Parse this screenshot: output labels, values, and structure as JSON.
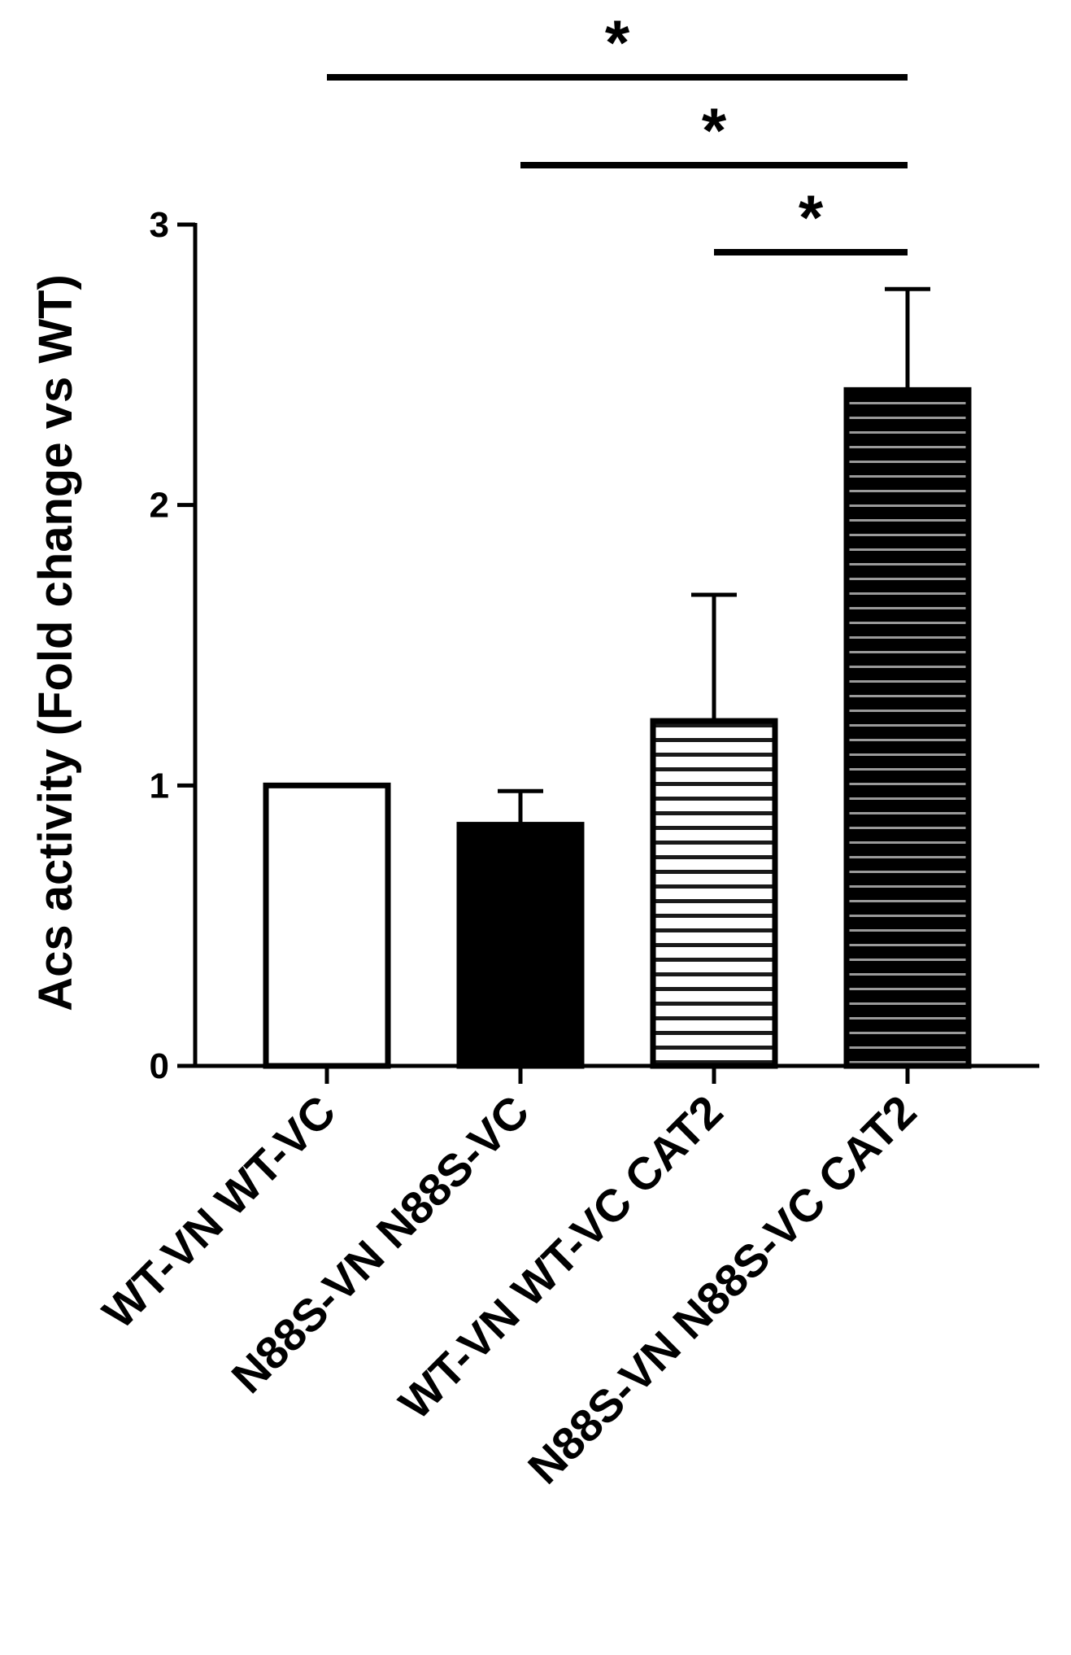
{
  "chart_data": {
    "type": "bar",
    "ylabel": "Acs  activity (Fold change vs WT)",
    "xlabel": "",
    "ylim": [
      0,
      3
    ],
    "yticks": [
      "0",
      "1",
      "2",
      "3"
    ],
    "categories": [
      "WT-VN WT-VC",
      "N88S-VN N88S-VC",
      "WT-VN WT-VC CAT2",
      "N88S-VN N88S-VC CAT2"
    ],
    "values": [
      1.0,
      0.86,
      1.23,
      2.41
    ],
    "errors": [
      0,
      0.12,
      0.45,
      0.36
    ],
    "bar_styles": [
      "open",
      "solid",
      "horizontal-stripes-light",
      "horizontal-stripes-dark"
    ],
    "significance": [
      {
        "from": 0,
        "to": 3,
        "label": "*"
      },
      {
        "from": 1,
        "to": 3,
        "label": "*"
      },
      {
        "from": 2,
        "to": 3,
        "label": "*"
      }
    ],
    "grid": false,
    "legend": "none"
  }
}
